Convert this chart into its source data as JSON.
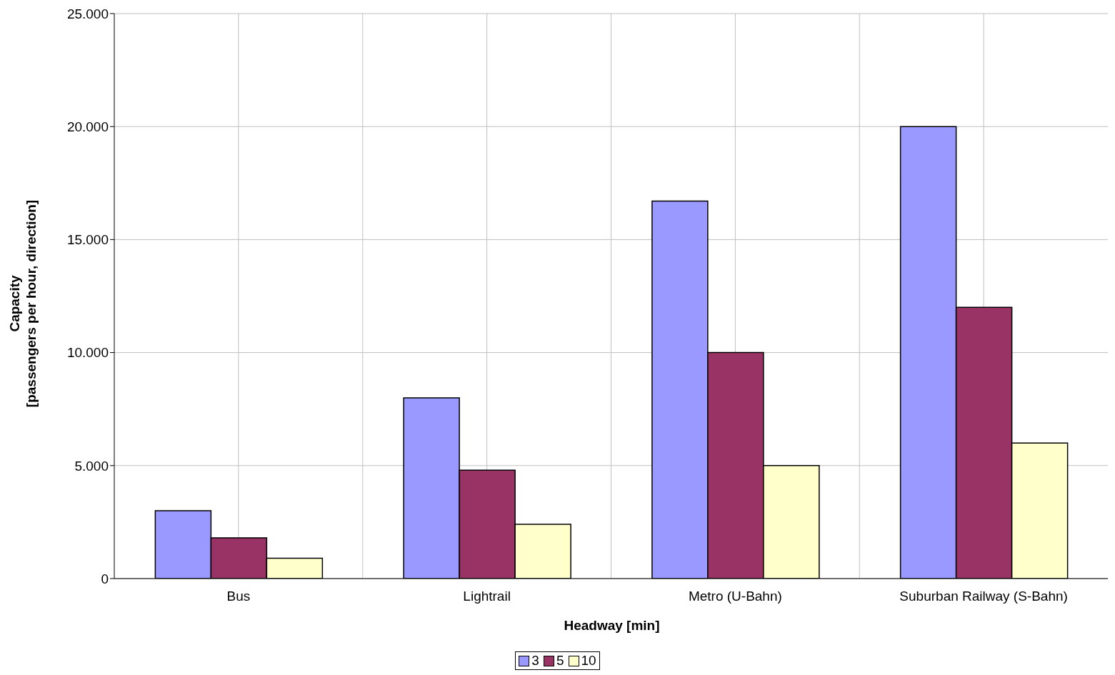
{
  "chart_data": {
    "type": "bar",
    "xlabel": "Headway [min]",
    "ylabel": "Capacity\n[passengers per hour, direction]",
    "categories": [
      "Bus",
      "Lightrail",
      "Metro (U-Bahn)",
      "Suburban Railway (S-Bahn)"
    ],
    "series": [
      {
        "name": "3",
        "color": "#9999ff",
        "values": [
          3000,
          8000,
          16700,
          20000
        ]
      },
      {
        "name": "5",
        "color": "#993366",
        "values": [
          1800,
          4800,
          10000,
          12000
        ]
      },
      {
        "name": "10",
        "color": "#ffffcc",
        "values": [
          900,
          2400,
          5000,
          6000
        ]
      }
    ],
    "ylim": [
      0,
      25000
    ],
    "yticks": [
      {
        "value": 0,
        "label": "0"
      },
      {
        "value": 5000,
        "label": "5.000"
      },
      {
        "value": 10000,
        "label": "10.000"
      },
      {
        "value": 15000,
        "label": "15.000"
      },
      {
        "value": 20000,
        "label": "20.000"
      },
      {
        "value": 25000,
        "label": "25.000"
      }
    ],
    "grid": true,
    "legend": "bottom"
  }
}
